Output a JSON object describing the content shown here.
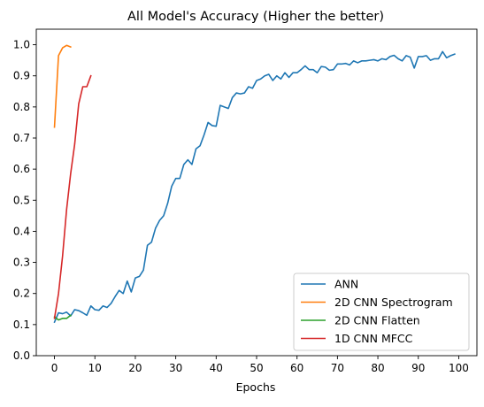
{
  "chart_data": {
    "type": "line",
    "title": "All Model's Accuracy (Higher the better)",
    "xlabel": "Epochs",
    "ylabel": "",
    "xlim": [
      -4.5,
      104.5
    ],
    "ylim": [
      0.0,
      1.05
    ],
    "xticks": [
      0,
      10,
      20,
      30,
      40,
      50,
      60,
      70,
      80,
      90,
      100
    ],
    "yticks": [
      0.0,
      0.1,
      0.2,
      0.3,
      0.4,
      0.5,
      0.6,
      0.7,
      0.8,
      0.9,
      1.0
    ],
    "grid": false,
    "legend_position": "lower-right",
    "series": [
      {
        "name": "ANN",
        "color": "#1f77b4",
        "x": [
          0,
          1,
          2,
          3,
          4,
          5,
          6,
          7,
          8,
          9,
          10,
          11,
          12,
          13,
          14,
          15,
          16,
          17,
          18,
          19,
          20,
          21,
          22,
          23,
          24,
          25,
          26,
          27,
          28,
          29,
          30,
          31,
          32,
          33,
          34,
          35,
          36,
          37,
          38,
          39,
          40,
          41,
          42,
          43,
          44,
          45,
          46,
          47,
          48,
          49,
          50,
          51,
          52,
          53,
          54,
          55,
          56,
          57,
          58,
          59,
          60,
          61,
          62,
          63,
          64,
          65,
          66,
          67,
          68,
          69,
          70,
          71,
          72,
          73,
          74,
          75,
          76,
          77,
          78,
          79,
          80,
          81,
          82,
          83,
          84,
          85,
          86,
          87,
          88,
          89,
          90,
          91,
          92,
          93,
          94,
          95,
          96,
          97,
          98,
          99
        ],
        "y": [
          0.108,
          0.138,
          0.135,
          0.14,
          0.128,
          0.148,
          0.145,
          0.138,
          0.13,
          0.16,
          0.148,
          0.146,
          0.16,
          0.155,
          0.168,
          0.19,
          0.21,
          0.2,
          0.24,
          0.205,
          0.25,
          0.255,
          0.275,
          0.355,
          0.365,
          0.41,
          0.435,
          0.45,
          0.49,
          0.545,
          0.57,
          0.57,
          0.615,
          0.63,
          0.615,
          0.665,
          0.675,
          0.71,
          0.75,
          0.74,
          0.738,
          0.805,
          0.8,
          0.795,
          0.83,
          0.845,
          0.842,
          0.845,
          0.865,
          0.86,
          0.885,
          0.89,
          0.9,
          0.905,
          0.885,
          0.9,
          0.89,
          0.91,
          0.895,
          0.91,
          0.91,
          0.92,
          0.932,
          0.92,
          0.92,
          0.91,
          0.93,
          0.928,
          0.918,
          0.92,
          0.938,
          0.938,
          0.94,
          0.935,
          0.948,
          0.942,
          0.948,
          0.948,
          0.95,
          0.952,
          0.948,
          0.955,
          0.952,
          0.962,
          0.966,
          0.955,
          0.948,
          0.965,
          0.96,
          0.925,
          0.962,
          0.962,
          0.965,
          0.95,
          0.955,
          0.955,
          0.978,
          0.958,
          0.965,
          0.97
        ]
      },
      {
        "name": "2D CNN Spectrogram",
        "color": "#ff7f0e",
        "x": [
          0,
          1,
          2,
          3,
          4
        ],
        "y": [
          0.735,
          0.965,
          0.99,
          0.998,
          0.993
        ]
      },
      {
        "name": "2D CNN Flatten",
        "color": "#2ca02c",
        "x": [
          0,
          1,
          2,
          3,
          4
        ],
        "y": [
          0.125,
          0.115,
          0.12,
          0.12,
          0.13
        ]
      },
      {
        "name": "1D CNN MFCC",
        "color": "#d62728",
        "x": [
          0,
          1,
          2,
          3,
          4,
          5,
          6,
          7,
          8,
          9
        ],
        "y": [
          0.12,
          0.2,
          0.32,
          0.47,
          0.585,
          0.68,
          0.81,
          0.865,
          0.865,
          0.9
        ]
      }
    ]
  }
}
